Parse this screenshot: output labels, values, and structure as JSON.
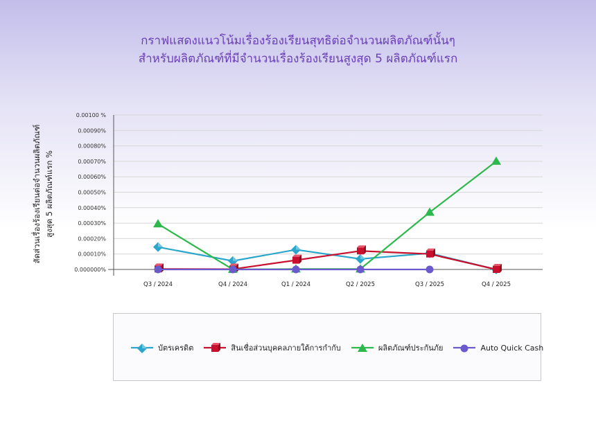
{
  "title_line1": "กราฟแสดงแนวโน้มเรื่องร้องเรียนสุทธิต่อจำนวนผลิตภัณฑ์นั้นๆ",
  "title_line2": "สำหรับผลิตภัณฑ์ที่มีจำนวนเรื่องร้องเรียนสูงสุด 5 ผลิตภัณฑ์แรก",
  "ylabel_line1": "สัดส่วนเรื่องร้องเรียนต่อจำนวนผลิตภัณฑ์",
  "ylabel_line2": "สูงสุด 5 ผลิตภัณฑ์แรก   %",
  "chart_data": {
    "type": "line",
    "categories": [
      "Q3 / 2024",
      "Q4 / 2024",
      "Q1 / 2024",
      "Q2 / 2025",
      "Q3 / 2025",
      "Q4 / 2025"
    ],
    "ylim": [
      0,
      0.001
    ],
    "yticks": [
      "0.000000%",
      "0.00010%",
      "0.00020%",
      "0.00030%",
      "0.00040%",
      "0.00050%",
      "0.00060%",
      "0.00070%",
      "0.00080%",
      "0.00090%",
      "0.00100 %"
    ],
    "grid": true,
    "legend_position": "bottom",
    "series": [
      {
        "name": "บัตรเครดิต",
        "color": "#2aa5cc",
        "marker": "diamond",
        "values": [
          0.000145,
          5.5e-05,
          0.000128,
          6.8e-05,
          0.000105,
          0.0
        ]
      },
      {
        "name": "สินเชื่อส่วนบุคคลภายใต้การกำกับ",
        "color": "#c8102e",
        "marker": "cube",
        "values": [
          3e-06,
          2e-06,
          6e-05,
          0.00012,
          0.0001,
          0.0
        ]
      },
      {
        "name": "ผลิตภัณฑ์ประกันภัย",
        "color": "#2db84b",
        "marker": "triangle",
        "values": [
          0.000295,
          0.0,
          3e-06,
          3e-06,
          0.00037,
          0.0007
        ]
      },
      {
        "name": "Auto Quick Cash",
        "color": "#6a5acd",
        "marker": "circle",
        "values": [
          0.0,
          0.0,
          0.0,
          0.0,
          0.0,
          null
        ]
      }
    ]
  }
}
